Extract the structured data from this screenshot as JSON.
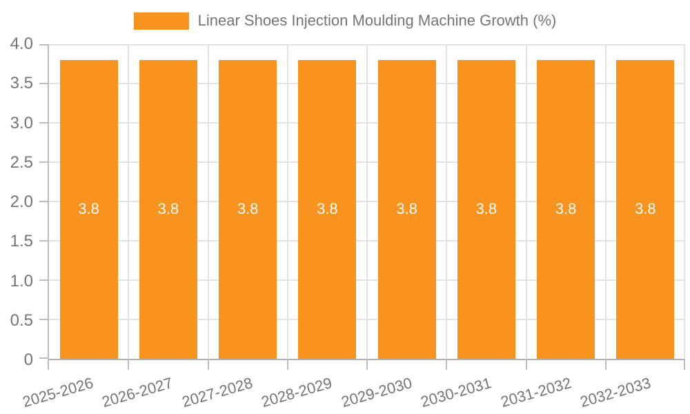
{
  "chart_data": {
    "type": "bar",
    "title": "",
    "legend": "Linear Shoes Injection Moulding Machine Growth (%)",
    "legend_position": "top",
    "categories": [
      "2025-2026",
      "2026-2027",
      "2027-2028",
      "2028-2029",
      "2029-2030",
      "2030-2031",
      "2031-2032",
      "2032-2033"
    ],
    "values": [
      3.8,
      3.8,
      3.8,
      3.8,
      3.8,
      3.8,
      3.8,
      3.8
    ],
    "value_labels_shown": true,
    "xlabel": "",
    "ylabel": "",
    "ylim": [
      0,
      4
    ],
    "y_ticks": [
      "4.0",
      "3.5",
      "3.0",
      "2.5",
      "2.0",
      "1.5",
      "1.0",
      "0.5",
      "0"
    ],
    "grid": true
  },
  "colors": {
    "bar": "#F7931E",
    "value_label": "#FFFFFF",
    "axis_text": "#757575",
    "axis_line": "#BDBDBD",
    "gridline": "#E3E3E3",
    "background": "#FFFFFF"
  }
}
